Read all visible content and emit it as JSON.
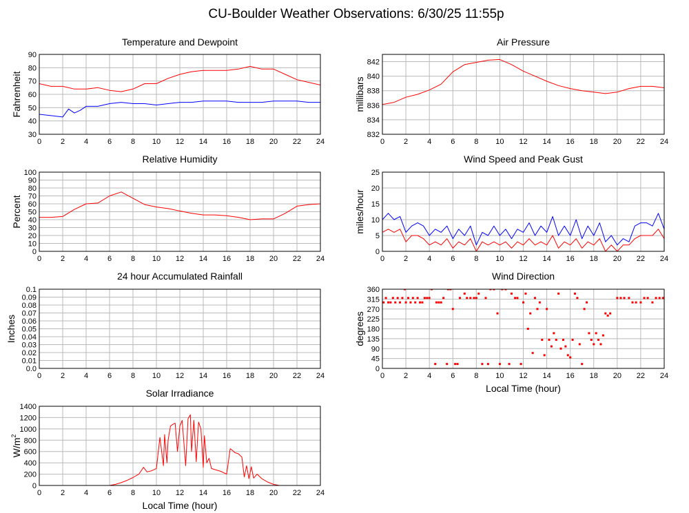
{
  "page_title": "CU-Boulder Weather Observations: 6/30/25 11:55p",
  "colors": {
    "red": "#ff0000",
    "blue": "#0000ff",
    "grid": "#b8b8b8"
  },
  "chart_data": [
    {
      "id": "temp",
      "type": "line",
      "title": "Temperature and Dewpoint",
      "xlabel": "",
      "ylabel": "Fahrenheit",
      "xlim": [
        0,
        24
      ],
      "ylim": [
        30,
        90
      ],
      "xticks": [
        0,
        2,
        4,
        6,
        8,
        10,
        12,
        14,
        16,
        18,
        20,
        22,
        24
      ],
      "yticks": [
        30,
        40,
        50,
        60,
        70,
        80,
        90
      ],
      "grid": true,
      "series": [
        {
          "color": "#ff0000",
          "x": [
            0,
            1,
            2,
            3,
            4,
            5,
            6,
            7,
            8,
            9,
            10,
            11,
            12,
            13,
            14,
            15,
            16,
            17,
            18,
            19,
            20,
            21,
            22,
            23,
            24
          ],
          "y": [
            68,
            66,
            66,
            64,
            64,
            65,
            63,
            62,
            64,
            68,
            68,
            72,
            75,
            77,
            78,
            78,
            78,
            79,
            81,
            79,
            79,
            75,
            71,
            69,
            67
          ]
        },
        {
          "color": "#0000ff",
          "x": [
            0,
            1,
            2,
            2.5,
            3,
            3.5,
            4,
            5,
            6,
            7,
            8,
            9,
            10,
            11,
            12,
            13,
            14,
            15,
            16,
            17,
            18,
            19,
            20,
            21,
            22,
            23,
            24
          ],
          "y": [
            45,
            44,
            43,
            49,
            46,
            48,
            51,
            51,
            53,
            54,
            53,
            53,
            52,
            53,
            54,
            54,
            55,
            55,
            55,
            54,
            54,
            54,
            55,
            55,
            55,
            54,
            54
          ]
        }
      ]
    },
    {
      "id": "pressure",
      "type": "line",
      "title": "Air Pressure",
      "xlabel": "",
      "ylabel": "millibars",
      "xlim": [
        0,
        24
      ],
      "ylim": [
        832,
        843
      ],
      "xticks": [
        0,
        2,
        4,
        6,
        8,
        10,
        12,
        14,
        16,
        18,
        20,
        22,
        24
      ],
      "yticks": [
        832,
        834,
        836,
        838,
        840,
        842
      ],
      "grid": true,
      "series": [
        {
          "color": "#ff0000",
          "x": [
            0,
            1,
            2,
            3,
            4,
            5,
            6,
            7,
            8,
            9,
            10,
            11,
            12,
            13,
            14,
            15,
            16,
            17,
            18,
            19,
            20,
            21,
            22,
            23,
            24
          ],
          "y": [
            836.1,
            836.4,
            837.1,
            837.5,
            838.1,
            838.9,
            840.6,
            841.6,
            841.9,
            842.2,
            842.3,
            841.6,
            840.7,
            840.0,
            839.3,
            838.7,
            838.3,
            838.0,
            837.8,
            837.6,
            837.8,
            838.3,
            838.6,
            838.6,
            838.4
          ]
        }
      ]
    },
    {
      "id": "rh",
      "type": "line",
      "title": "Relative Humidity",
      "xlabel": "",
      "ylabel": "Percent",
      "xlim": [
        0,
        24
      ],
      "ylim": [
        0,
        100
      ],
      "xticks": [
        0,
        2,
        4,
        6,
        8,
        10,
        12,
        14,
        16,
        18,
        20,
        22,
        24
      ],
      "yticks": [
        0,
        10,
        20,
        30,
        40,
        50,
        60,
        70,
        80,
        90,
        100
      ],
      "grid": true,
      "series": [
        {
          "color": "#ff0000",
          "x": [
            0,
            1,
            2,
            3,
            4,
            5,
            6,
            7,
            8,
            9,
            10,
            11,
            12,
            13,
            14,
            15,
            16,
            17,
            18,
            19,
            20,
            21,
            22,
            23,
            24
          ],
          "y": [
            43,
            43,
            44,
            53,
            60,
            61,
            70,
            75,
            67,
            59,
            56,
            54,
            51,
            48,
            46,
            46,
            45,
            43,
            40,
            41,
            41,
            48,
            57,
            59,
            60
          ]
        }
      ]
    },
    {
      "id": "wind",
      "type": "line",
      "title": "Wind Speed and Peak Gust",
      "xlabel": "",
      "ylabel": "miles/hour",
      "xlim": [
        0,
        24
      ],
      "ylim": [
        0,
        25
      ],
      "xticks": [
        0,
        2,
        4,
        6,
        8,
        10,
        12,
        14,
        16,
        18,
        20,
        22,
        24
      ],
      "yticks": [
        0,
        5,
        10,
        15,
        20,
        25
      ],
      "grid": true,
      "series": [
        {
          "color": "#0000ff",
          "x": [
            0,
            0.5,
            1,
            1.5,
            2,
            2.5,
            3,
            3.5,
            4,
            4.5,
            5,
            5.5,
            6,
            6.5,
            7,
            7.5,
            8,
            8.5,
            9,
            9.5,
            10,
            10.5,
            11,
            11.5,
            12,
            12.5,
            13,
            13.5,
            14,
            14.5,
            15,
            15.5,
            16,
            16.5,
            17,
            17.5,
            18,
            18.5,
            19,
            19.5,
            20,
            20.5,
            21,
            21.5,
            22,
            22.5,
            23,
            23.5,
            24
          ],
          "y": [
            10,
            12,
            10,
            11,
            6,
            8,
            9,
            8,
            5,
            7,
            6,
            8,
            4,
            7,
            5,
            8,
            2,
            6,
            5,
            8,
            5,
            7,
            4,
            7,
            6,
            9,
            5,
            8,
            6,
            11,
            5,
            8,
            5,
            10,
            4,
            8,
            5,
            9,
            3,
            5,
            2,
            4,
            3,
            8,
            9,
            9,
            8,
            12,
            7
          ]
        },
        {
          "color": "#ff0000",
          "x": [
            0,
            0.5,
            1,
            1.5,
            2,
            2.5,
            3,
            3.5,
            4,
            4.5,
            5,
            5.5,
            6,
            6.5,
            7,
            7.5,
            8,
            8.5,
            9,
            9.5,
            10,
            10.5,
            11,
            11.5,
            12,
            12.5,
            13,
            13.5,
            14,
            14.5,
            15,
            15.5,
            16,
            16.5,
            17,
            17.5,
            18,
            18.5,
            19,
            19.5,
            20,
            20.5,
            21,
            21.5,
            22,
            22.5,
            23,
            23.5,
            24
          ],
          "y": [
            6,
            7,
            6,
            7,
            3,
            5,
            5,
            4,
            2,
            3,
            2,
            4,
            1,
            3,
            2,
            4,
            0,
            3,
            2,
            3,
            2,
            3,
            1,
            3,
            2,
            4,
            2,
            3,
            2,
            5,
            1,
            3,
            2,
            4,
            1,
            3,
            2,
            4,
            0,
            2,
            0,
            2,
            2,
            4,
            5,
            5,
            5,
            7,
            4
          ]
        }
      ]
    },
    {
      "id": "rain",
      "type": "line",
      "title": "24 hour Accumulated Rainfall",
      "xlabel": "",
      "ylabel": "Inches",
      "xlim": [
        0,
        24
      ],
      "ylim": [
        0,
        0.1
      ],
      "xticks": [
        0,
        2,
        4,
        6,
        8,
        10,
        12,
        14,
        16,
        18,
        20,
        22,
        24
      ],
      "yticks": [
        0.0,
        0.01,
        0.02,
        0.03,
        0.04,
        0.05,
        0.06,
        0.07,
        0.08,
        0.09,
        0.1
      ],
      "ytick_labels": [
        "0.0",
        "0.01",
        "0.02",
        "0.03",
        "0.04",
        "0.05",
        "0.06",
        "0.07",
        "0.08",
        "0.09",
        "0.1"
      ],
      "grid": true,
      "series": [
        {
          "color": "#ff0000",
          "x": [
            0,
            24
          ],
          "y": [
            0,
            0
          ]
        }
      ]
    },
    {
      "id": "winddir",
      "type": "scatter",
      "title": "Wind Direction",
      "xlabel": "Local Time (hour)",
      "ylabel": "degrees",
      "xlim": [
        0,
        24
      ],
      "ylim": [
        0,
        360
      ],
      "xticks": [
        0,
        2,
        4,
        6,
        8,
        10,
        12,
        14,
        16,
        18,
        20,
        22,
        24
      ],
      "yticks": [
        0,
        45,
        90,
        135,
        180,
        225,
        270,
        315,
        360
      ],
      "grid": true,
      "series": [
        {
          "color": "#ff0000",
          "x": [
            0.1,
            0.3,
            0.5,
            0.7,
            0.9,
            1.1,
            1.3,
            1.5,
            1.7,
            1.9,
            2.0,
            2.2,
            2.4,
            2.6,
            2.8,
            3.0,
            3.2,
            3.4,
            3.6,
            3.8,
            4.0,
            4.2,
            4.5,
            4.6,
            4.8,
            5.0,
            5.2,
            5.5,
            5.6,
            5.8,
            6.0,
            6.2,
            6.4,
            6.6,
            7.0,
            7.2,
            7.5,
            7.8,
            8.0,
            8.2,
            8.5,
            8.8,
            9.0,
            9.2,
            9.5,
            9.8,
            10.0,
            10.2,
            10.5,
            10.8,
            11.0,
            11.3,
            11.5,
            11.8,
            12.0,
            12.2,
            12.4,
            12.6,
            12.8,
            13.0,
            13.2,
            13.4,
            13.6,
            13.8,
            14.0,
            14.2,
            14.4,
            14.6,
            14.8,
            15.0,
            15.2,
            15.4,
            15.6,
            15.8,
            16.0,
            16.2,
            16.4,
            16.6,
            16.8,
            17.0,
            17.2,
            17.4,
            17.6,
            17.8,
            18.0,
            18.2,
            18.4,
            18.6,
            18.8,
            19.0,
            19.2,
            19.4,
            20.0,
            20.3,
            20.6,
            21.0,
            21.3,
            21.6,
            22.0,
            22.3,
            22.6,
            23.0,
            23.3,
            23.6,
            23.9
          ],
          "y": [
            300,
            320,
            300,
            300,
            320,
            300,
            320,
            300,
            320,
            360,
            300,
            320,
            300,
            320,
            300,
            320,
            300,
            300,
            320,
            320,
            320,
            360,
            20,
            300,
            300,
            300,
            320,
            20,
            360,
            360,
            270,
            20,
            20,
            320,
            340,
            320,
            320,
            320,
            320,
            340,
            20,
            320,
            20,
            360,
            360,
            250,
            20,
            360,
            360,
            20,
            340,
            320,
            320,
            20,
            300,
            340,
            180,
            250,
            70,
            320,
            270,
            300,
            130,
            60,
            270,
            130,
            100,
            160,
            130,
            340,
            90,
            130,
            100,
            60,
            50,
            130,
            340,
            320,
            110,
            20,
            270,
            300,
            160,
            130,
            110,
            160,
            130,
            110,
            150,
            250,
            240,
            250,
            320,
            320,
            320,
            320,
            300,
            300,
            300,
            320,
            320,
            300,
            320,
            320,
            320
          ]
        }
      ]
    },
    {
      "id": "solar",
      "type": "line",
      "title": "Solar Irradiance",
      "xlabel": "Local Time (hour)",
      "ylabel": "W/m",
      "ylabel_superscript": "2",
      "xlim": [
        0,
        24
      ],
      "ylim": [
        0,
        1400
      ],
      "xticks": [
        0,
        2,
        4,
        6,
        8,
        10,
        12,
        14,
        16,
        18,
        20,
        22,
        24
      ],
      "yticks": [
        0,
        200,
        400,
        600,
        800,
        1000,
        1200,
        1400
      ],
      "grid": true,
      "series": [
        {
          "color": "#ff0000",
          "x": [
            0,
            6,
            6.5,
            7,
            7.5,
            8,
            8.5,
            8.9,
            9.2,
            9.6,
            10.0,
            10.3,
            10.6,
            10.7,
            10.9,
            11.0,
            11.2,
            11.4,
            11.6,
            11.8,
            12.0,
            12.2,
            12.5,
            12.7,
            12.9,
            13.0,
            13.2,
            13.4,
            13.6,
            13.8,
            14.0,
            14.1,
            14.3,
            14.5,
            14.7,
            15.0,
            15.5,
            16.0,
            16.3,
            16.5,
            16.7,
            17.0,
            17.3,
            17.5,
            17.7,
            17.9,
            18.1,
            18.3,
            18.6,
            19.0,
            19.5,
            20.0,
            20.5,
            24
          ],
          "y": [
            0,
            0,
            20,
            50,
            90,
            140,
            200,
            320,
            240,
            260,
            300,
            850,
            350,
            900,
            400,
            800,
            1050,
            1080,
            1100,
            600,
            1050,
            1150,
            350,
            1180,
            1250,
            600,
            1150,
            420,
            1120,
            1000,
            320,
            880,
            400,
            480,
            300,
            280,
            250,
            200,
            650,
            620,
            580,
            560,
            500,
            150,
            350,
            120,
            330,
            130,
            200,
            120,
            60,
            20,
            0,
            0
          ]
        }
      ]
    }
  ]
}
